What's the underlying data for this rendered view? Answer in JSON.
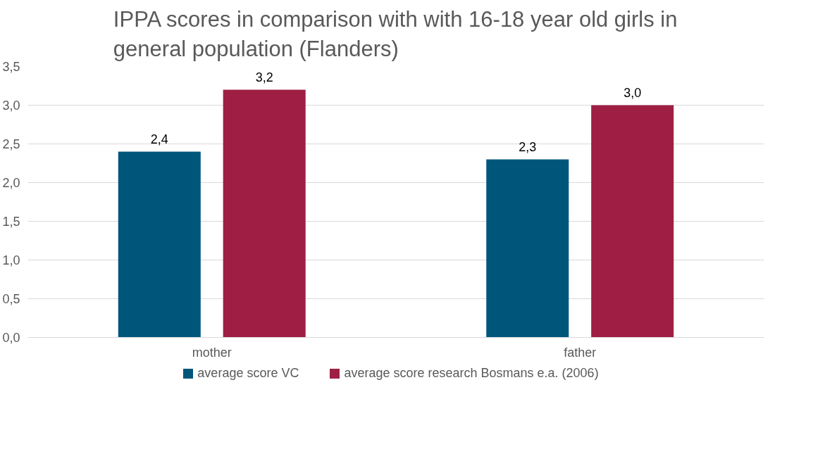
{
  "chart_data": {
    "type": "bar",
    "title": "IPPA scores in comparison with with 16-18 year old girls in general population (Flanders)",
    "categories": [
      "mother",
      "father"
    ],
    "series": [
      {
        "name": "average score VC",
        "color": "#00567a",
        "values": [
          2.4,
          2.3
        ],
        "value_labels": [
          "2,4",
          "2,3"
        ]
      },
      {
        "name": "average score research Bosmans e.a. (2006)",
        "color": "#9e1f43",
        "values": [
          3.2,
          3.0
        ],
        "value_labels": [
          "3,2",
          "3,0"
        ]
      }
    ],
    "ylim": [
      0,
      3.5
    ],
    "yticks": [
      {
        "value": 0,
        "label": "0,0"
      },
      {
        "value": 0.5,
        "label": "0,5"
      },
      {
        "value": 1,
        "label": "1,0"
      },
      {
        "value": 1.5,
        "label": "1,5"
      },
      {
        "value": 2,
        "label": "2,0"
      },
      {
        "value": 2.5,
        "label": "2,5"
      },
      {
        "value": 3,
        "label": "3,0"
      },
      {
        "value": 3.5,
        "label": "3,5"
      }
    ],
    "grid": "y",
    "legend": "bottom"
  }
}
